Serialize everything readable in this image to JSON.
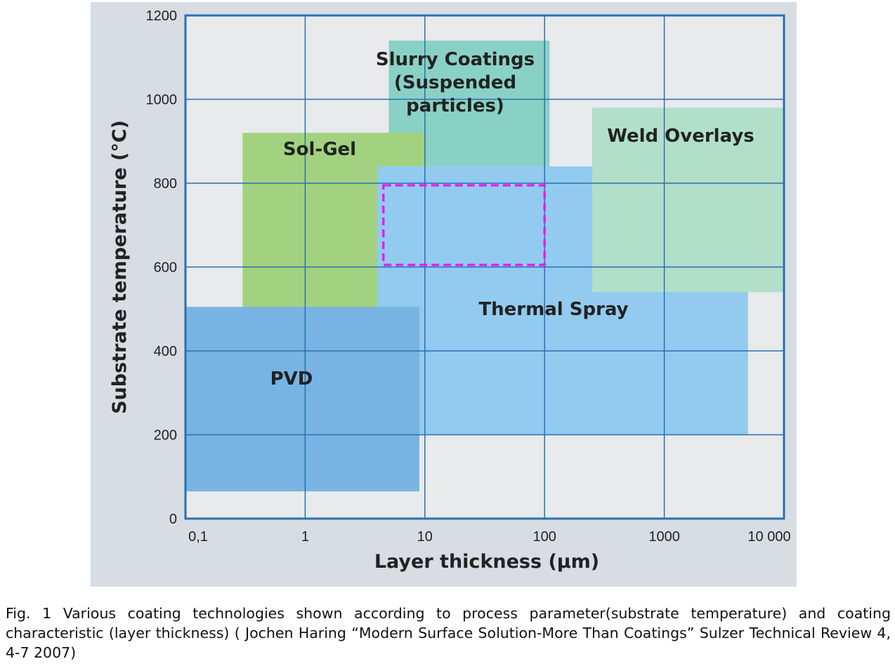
{
  "chart_data": {
    "type": "area",
    "xlabel": "Layer thickness (µm)",
    "ylabel": "Substrate temperature (°C)",
    "x_scale": "log",
    "xlim": [
      0.1,
      10000
    ],
    "ylim": [
      0,
      1200
    ],
    "x_ticks": [
      {
        "value": 0.1,
        "label": "0,1"
      },
      {
        "value": 1,
        "label": "1"
      },
      {
        "value": 10,
        "label": "10"
      },
      {
        "value": 100,
        "label": "100"
      },
      {
        "value": 1000,
        "label": "1000"
      },
      {
        "value": 10000,
        "label": "10 000"
      }
    ],
    "y_ticks": [
      {
        "value": 0,
        "label": "0"
      },
      {
        "value": 200,
        "label": "200"
      },
      {
        "value": 400,
        "label": "400"
      },
      {
        "value": 600,
        "label": "600"
      },
      {
        "value": 800,
        "label": "800"
      },
      {
        "value": 1000,
        "label": "1000"
      },
      {
        "value": 1200,
        "label": "1200"
      }
    ],
    "grid": true,
    "regions": [
      {
        "name": "slurry-coatings",
        "label_lines": [
          "Slurry Coatings",
          "(Suspended",
          "particles)"
        ],
        "x": [
          5,
          110
        ],
        "y": [
          840,
          1140
        ],
        "color": "#8ad1c5"
      },
      {
        "name": "sol-gel",
        "label_lines": [
          "Sol-Gel"
        ],
        "x": [
          0.3,
          10
        ],
        "y": [
          500,
          920
        ],
        "color": "#a2d27f"
      },
      {
        "name": "thermal-spray",
        "label_lines": [
          "Thermal Spray"
        ],
        "x": [
          4,
          5000
        ],
        "y": [
          200,
          840
        ],
        "color": "#92cbef"
      },
      {
        "name": "weld-overlays",
        "label_lines": [
          "Weld Overlays"
        ],
        "x": [
          250,
          15000
        ],
        "y": [
          540,
          980
        ],
        "color": "#b2dfca"
      },
      {
        "name": "pvd",
        "label_lines": [
          "PVD"
        ],
        "x": [
          0.1,
          9
        ],
        "y": [
          65,
          505
        ],
        "color": "#78b4e3"
      }
    ],
    "highlight": {
      "x": [
        4.5,
        100
      ],
      "y": [
        605,
        795
      ],
      "color": "#e81ef0",
      "style": "dashed"
    }
  },
  "colors": {
    "panel_background": "#d7dde2",
    "plot_background": "#e8eaec",
    "grid_axis": "#2a6fb0"
  },
  "caption": "Fig. 1 Various coating technologies shown according to process parameter(substrate temperature) and coating characteristic (layer thickness) ( Jochen Haring “Modern Surface Solution-More Than Coatings” Sulzer Technical Review 4, 4-7 2007)"
}
